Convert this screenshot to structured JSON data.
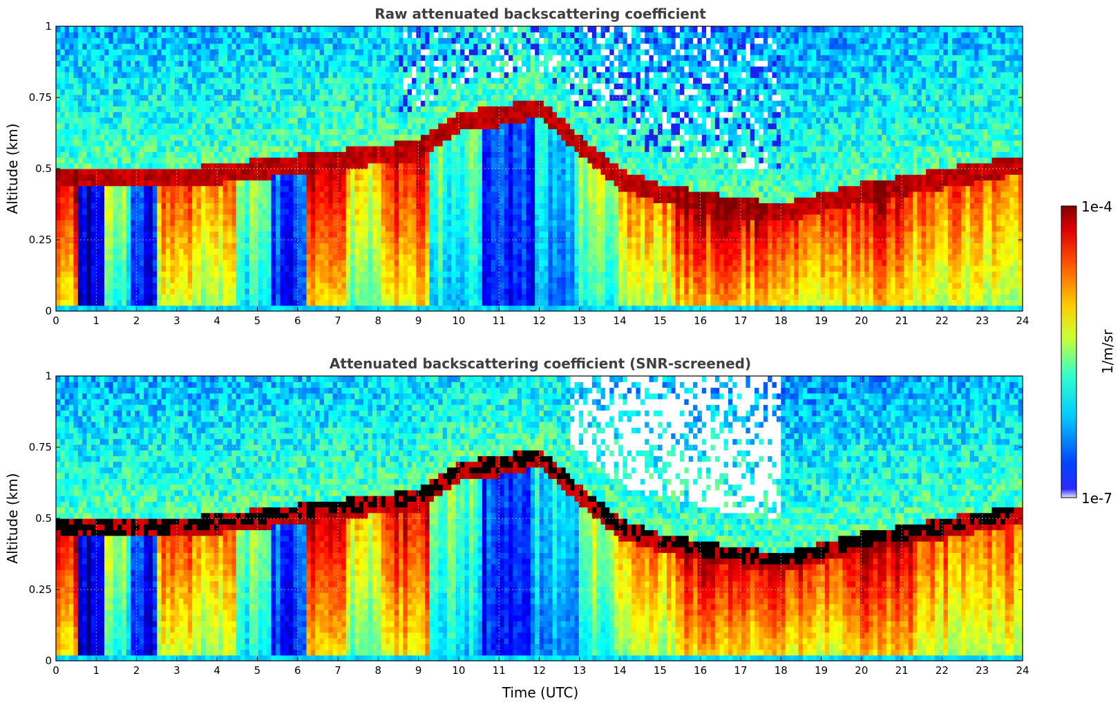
{
  "figure": {
    "colorbar": {
      "max_label": "1e-4",
      "min_label": "1e-7",
      "units_label": "1/m/sr",
      "scale": "log",
      "colormap": "jet",
      "low_end_color": "#e6e6f8"
    }
  },
  "chart_data": [
    {
      "type": "heatmap",
      "title": "Raw attenuated backscattering coefficient",
      "xlabel": "",
      "ylabel": "Altitude (km)",
      "xlim": [
        0,
        24
      ],
      "ylim": [
        0,
        1
      ],
      "xticks": [
        "0",
        "1",
        "2",
        "3",
        "4",
        "5",
        "6",
        "7",
        "8",
        "9",
        "10",
        "11",
        "12",
        "13",
        "14",
        "15",
        "16",
        "17",
        "18",
        "19",
        "20",
        "21",
        "22",
        "23",
        "24"
      ],
      "yticks": [
        "0",
        "0.25",
        "0.5",
        "0.75",
        "1"
      ],
      "grid": true,
      "color_scale": [
        1e-07,
        0.0001
      ],
      "description_of_features": "boundary layer top rising from ~0.5 km to ~0.8 km near 10-12 UTC then descending to ~0.35 km at 17-18 UTC; noisy signal above layer after 8 UTC"
    },
    {
      "type": "heatmap",
      "title": "Attenuated backscattering coefficient (SNR-screened)",
      "xlabel": "Time (UTC)",
      "ylabel": "Altitude (km)",
      "xlim": [
        0,
        24
      ],
      "ylim": [
        0,
        1
      ],
      "xticks": [
        "0",
        "1",
        "2",
        "3",
        "4",
        "5",
        "6",
        "7",
        "8",
        "9",
        "10",
        "11",
        "12",
        "13",
        "14",
        "15",
        "16",
        "17",
        "18",
        "19",
        "20",
        "21",
        "22",
        "23",
        "24"
      ],
      "yticks": [
        "0",
        "0.25",
        "0.5",
        "0.75",
        "1"
      ],
      "grid": true,
      "color_scale": [
        1e-07,
        0.0001
      ],
      "masked_color": "#000000"
    }
  ]
}
